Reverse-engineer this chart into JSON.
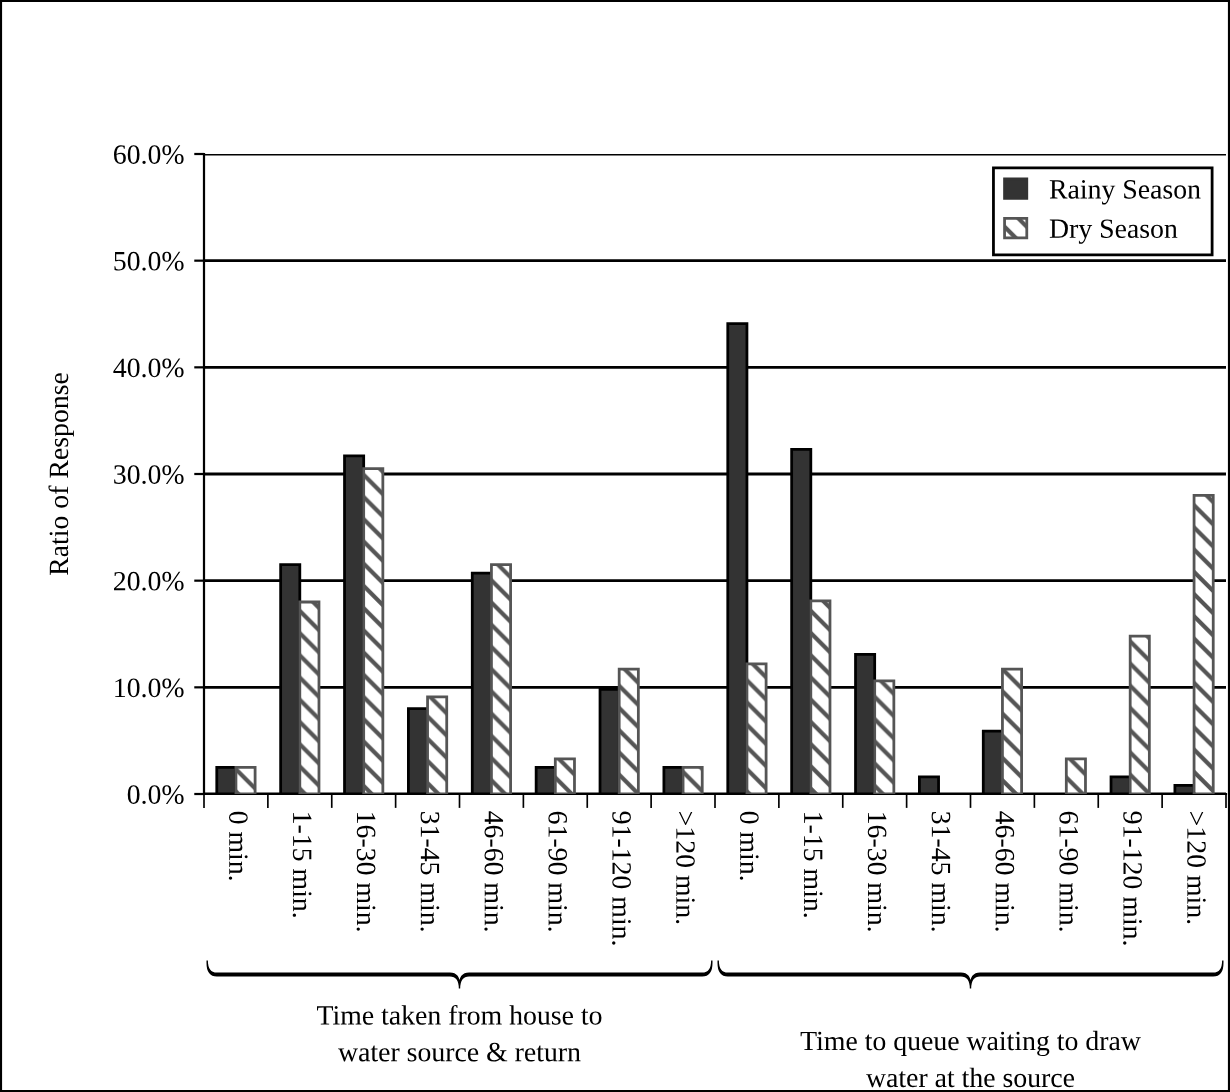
{
  "chart_data": {
    "type": "bar",
    "ylabel": "Ratio of Response",
    "categories": [
      "0 min.",
      "1-15 min.",
      "16-30 min.",
      "31-45 min.",
      "46-60 min.",
      "61-90 min.",
      "91-120 min.",
      ">120 min.",
      "0 min.",
      "1-15 min.",
      "16-30 min.",
      "31-45 min.",
      "46-60 min.",
      "61-90 min.",
      "91-120 min.",
      ">120 min."
    ],
    "series": [
      {
        "name": "Rainy Season",
        "color": "#333333",
        "values": [
          2.5,
          21.5,
          31.7,
          8.0,
          20.7,
          2.5,
          9.8,
          2.5,
          44.1,
          32.3,
          13.1,
          1.6,
          5.9,
          null,
          1.6,
          0.8
        ]
      },
      {
        "name": "Dry Season",
        "color": "#555555",
        "values": [
          2.5,
          18.0,
          30.5,
          9.1,
          21.5,
          3.3,
          11.7,
          2.5,
          12.2,
          18.1,
          10.6,
          null,
          11.7,
          3.3,
          14.8,
          28.0
        ]
      }
    ],
    "ylim": [
      0,
      60
    ],
    "yticks": [
      {
        "value": 0,
        "label": "0.0%"
      },
      {
        "value": 10,
        "label": "10.0%"
      },
      {
        "value": 20,
        "label": "20.0%"
      },
      {
        "value": 30,
        "label": "30.0%"
      },
      {
        "value": 40,
        "label": "40.0%"
      },
      {
        "value": 50,
        "label": "50.0%"
      },
      {
        "value": 60,
        "label": "60.0%"
      }
    ],
    "grid": "y",
    "legend": "top right",
    "annotations": [
      "Time taken from house to\nwater source & return",
      "Time to queue waiting to draw\nwater at the source"
    ]
  }
}
